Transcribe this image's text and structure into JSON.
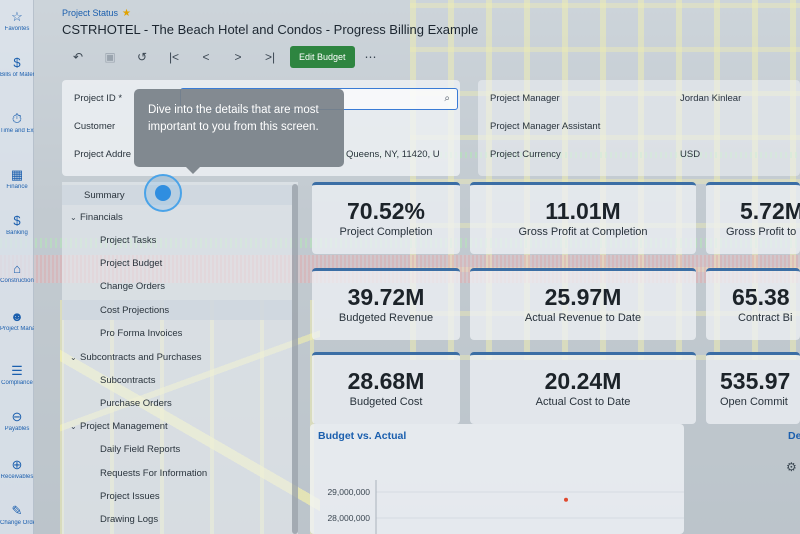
{
  "nav_rail": [
    {
      "icon": "star-icon",
      "glyph": "☆",
      "label": "Favorites"
    },
    {
      "icon": "bill-icon",
      "glyph": "$",
      "label": "Bills of Material"
    },
    {
      "icon": "stopwatch-icon",
      "glyph": "⏱",
      "label": "Time and Expenses"
    },
    {
      "icon": "finance-icon",
      "glyph": "▦",
      "label": "Finance"
    },
    {
      "icon": "dollar-icon",
      "glyph": "$",
      "label": "Banking"
    },
    {
      "icon": "crane-icon",
      "glyph": "⌂",
      "label": "Construction"
    },
    {
      "icon": "manager-icon",
      "glyph": "☻",
      "label": "Project Management"
    },
    {
      "icon": "compliance-icon",
      "glyph": "☰",
      "label": "Compliance"
    },
    {
      "icon": "payables-icon",
      "glyph": "⊖",
      "label": "Payables"
    },
    {
      "icon": "receivables-icon",
      "glyph": "⊕",
      "label": "Receivables"
    },
    {
      "icon": "change-orders-icon",
      "glyph": "✎",
      "label": "Change Orders"
    }
  ],
  "breadcrumb": "Project Status",
  "title": "CSTRHOTEL - The Beach Hotel and Condos - Progress Billing Example",
  "toolbar": {
    "undo": "↶",
    "save": "▣",
    "reset": "↺",
    "first": "|<",
    "prev": "<",
    "next": ">",
    "last": ">|",
    "edit_budget": "Edit Budget",
    "more": "⋯"
  },
  "form": {
    "project_id_label": "Project ID *",
    "customer_label": "Customer",
    "address_label": "Project Addre",
    "address_value": "Queens, NY, 11420, U",
    "project_manager_label": "Project Manager",
    "project_manager_value": "Jordan Kinlear",
    "assistant_label": "Project Manager Assistant",
    "currency_label": "Project Currency",
    "currency_value": "USD"
  },
  "tooltip": "Dive into the details that are most important to you from this screen.",
  "tree": {
    "summary": "Summary",
    "financials": "Financials",
    "project_tasks": "Project Tasks",
    "project_budget": "Project Budget",
    "change_orders": "Change Orders",
    "cost_projections": "Cost Projections",
    "pro_forma": "Pro Forma Invoices",
    "subcontracts_purchases": "Subcontracts and Purchases",
    "subcontracts": "Subcontracts",
    "purchase_orders": "Purchase Orders",
    "project_management": "Project Management",
    "daily_field_reports": "Daily Field Reports",
    "rfi": "Requests For Information",
    "project_issues": "Project Issues",
    "drawing_logs": "Drawing Logs"
  },
  "kpis": [
    {
      "value": "70.52%",
      "label": "Project Completion"
    },
    {
      "value": "11.01M",
      "label": "Gross Profit at Completion"
    },
    {
      "value": "5.72M",
      "label": "Gross Profit to"
    },
    {
      "value": "39.72M",
      "label": "Budgeted Revenue"
    },
    {
      "value": "25.97M",
      "label": "Actual Revenue to Date"
    },
    {
      "value": "65.38",
      "label": "Contract Bi"
    },
    {
      "value": "28.68M",
      "label": "Budgeted Cost"
    },
    {
      "value": "20.24M",
      "label": "Actual Cost to Date"
    },
    {
      "value": "535.97",
      "label": "Open Commit"
    }
  ],
  "chart_titles": {
    "budget_vs_actual": "Budget vs. Actual",
    "second": "De"
  },
  "colors": {
    "accent": "#1b5fae",
    "edit_button": "#2e8540",
    "star": "#e0a200",
    "kpi_border": "#3b6ea5",
    "beacon": "#2f8ee0"
  },
  "chart_data": {
    "type": "scatter",
    "title": "Budget vs. Actual",
    "y_ticks": [
      "29,000,000",
      "28,000,000"
    ],
    "ylim": [
      27500000,
      29500000
    ],
    "points": [
      {
        "x": 0,
        "y": 28700000
      }
    ],
    "point_color": "#e04a2f"
  }
}
